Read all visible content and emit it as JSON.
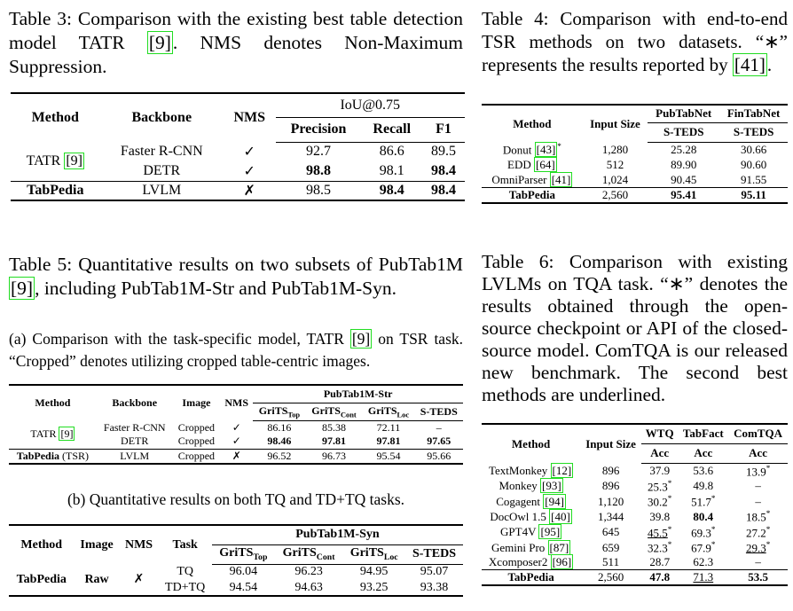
{
  "table3": {
    "caption": [
      "Table 3: Comparison with the existing best table detection model TATR ",
      {
        "text": "[9]",
        "cite": true
      },
      ". NMS denotes Non-Maximum Suppression."
    ],
    "header": [
      "Method",
      "Backbone",
      "NMS",
      "IoU@0.75",
      "Precision",
      "Recall",
      "F1"
    ],
    "body": [
      [
        [
          [
            "TATR ",
            {
              "text": "[9]",
              "cite": true
            }
          ],
          "Faster R-CNN",
          "✓",
          "92.7",
          "86.6",
          "89.5"
        ],
        [
          null,
          "DETR",
          "✓",
          {
            "text": "98.8",
            "bold": true
          },
          "98.1",
          {
            "text": "98.4",
            "bold": true
          }
        ]
      ],
      [
        [
          {
            "text": "TabPedia",
            "bold": true
          },
          "LVLM",
          "✗",
          "98.5",
          {
            "text": "98.4",
            "bold": true
          },
          {
            "text": "98.4",
            "bold": true
          }
        ]
      ]
    ]
  },
  "table4": {
    "caption": [
      "Table 4: Comparison with end-to-end TSR methods on two datasets. “∗” represents the results reported by ",
      {
        "text": "[41]",
        "cite": true
      },
      "."
    ],
    "header": [
      "Method",
      "Input Size",
      "PubTabNet",
      "FinTabNet",
      "S-TEDS",
      "S-TEDS"
    ],
    "body": [
      [
        [
          [
            "Donut ",
            {
              "text": "[43]",
              "cite": true
            },
            {
              "text": "*",
              "sup": true
            }
          ],
          "1,280",
          "25.28",
          "30.66"
        ],
        [
          [
            "EDD ",
            {
              "text": "[64]",
              "cite": true
            }
          ],
          "512",
          "89.90",
          "90.60"
        ],
        [
          [
            "OmniParser ",
            {
              "text": "[41]",
              "cite": true
            }
          ],
          "1,024",
          "90.45",
          "91.55"
        ]
      ],
      [
        [
          {
            "text": "TabPedia",
            "bold": true
          },
          "2,560",
          {
            "text": "95.41",
            "bold": true
          },
          {
            "text": "95.11",
            "bold": true
          }
        ]
      ]
    ]
  },
  "table5": {
    "caption": [
      "Table 5: Quantitative results on two subsets of PubTab1M ",
      {
        "text": "[9]",
        "cite": true
      },
      ", including PubTab1M-Str and PubTab1M-Syn."
    ],
    "a": {
      "caption": [
        "(a) Comparison with the task-specific model, TATR ",
        {
          "text": "[9]",
          "cite": true
        },
        " on TSR task. “Cropped” denotes utilizing cropped table-centric images."
      ],
      "header": [
        "Method",
        "Backbone",
        "Image",
        "NMS",
        "PubTab1M-Str",
        [
          "GriTS",
          {
            "text": "Top",
            "sub": true
          }
        ],
        [
          "GriTS",
          {
            "text": "Cont",
            "sub": true
          }
        ],
        [
          "GriTS",
          {
            "text": "Loc",
            "sub": true
          }
        ],
        "S-TEDS"
      ],
      "body": [
        [
          [
            [
              "TATR ",
              {
                "text": "[9]",
                "cite": true
              }
            ],
            "Faster R-CNN",
            "Cropped",
            "✓",
            "86.16",
            "85.38",
            "72.11",
            "–"
          ],
          [
            null,
            "DETR",
            "Cropped",
            "✓",
            {
              "text": "98.46",
              "bold": true
            },
            {
              "text": "97.81",
              "bold": true
            },
            {
              "text": "97.81",
              "bold": true
            },
            {
              "text": "97.65",
              "bold": true
            }
          ]
        ],
        [
          [
            [
              {
                "text": "TabPedia",
                "bold": true
              },
              " (TSR)"
            ],
            "LVLM",
            "Cropped",
            "✗",
            "96.52",
            "96.73",
            "95.54",
            "95.66"
          ]
        ]
      ]
    },
    "b": {
      "caption": "(b) Quantitative results on both TQ and TD+TQ tasks.",
      "header": [
        "Method",
        "Image",
        "NMS",
        "Task",
        "PubTab1M-Syn",
        [
          "GriTS",
          {
            "text": "Top",
            "sub": true
          }
        ],
        [
          "GriTS",
          {
            "text": "Cont",
            "sub": true
          }
        ],
        [
          "GriTS",
          {
            "text": "Loc",
            "sub": true
          }
        ],
        "S-TEDS"
      ],
      "body": [
        [
          [
            {
              "text": "TabPedia",
              "bold": true
            },
            {
              "text": "Raw",
              "bold": true
            },
            "✗",
            "TQ",
            "96.04",
            "96.23",
            "94.95",
            "95.07"
          ],
          [
            null,
            null,
            null,
            "TD+TQ",
            "94.54",
            "94.63",
            "93.25",
            "93.38"
          ]
        ]
      ]
    }
  },
  "table6": {
    "caption": "Table 6: Comparison with existing LVLMs on TQA task. “∗” denotes the results obtained through the open-source checkpoint or API of the closed-source model. ComTQA is our released new benchmark. The second best methods are underlined.",
    "header": [
      "Method",
      "Input Size",
      "WTQ",
      "TabFact",
      "ComTQA",
      "Acc",
      "Acc",
      "Acc"
    ],
    "body": [
      [
        [
          [
            "TextMonkey ",
            {
              "text": "[12]",
              "cite": true
            }
          ],
          "896",
          "37.9",
          "53.6",
          [
            "13.9",
            {
              "text": "*",
              "sup": true
            }
          ]
        ],
        [
          [
            "Monkey ",
            {
              "text": "[93]",
              "cite": true
            }
          ],
          "896",
          [
            "25.3",
            {
              "text": "*",
              "sup": true
            }
          ],
          "49.8",
          "–"
        ],
        [
          [
            "Cogagent ",
            {
              "text": "[94]",
              "cite": true
            }
          ],
          "1,120",
          [
            "30.2",
            {
              "text": "*",
              "sup": true
            }
          ],
          [
            "51.7",
            {
              "text": "*",
              "sup": true
            }
          ],
          "–"
        ],
        [
          [
            "DocOwl 1.5 ",
            {
              "text": "[40]",
              "cite": true
            }
          ],
          "1,344",
          "39.8",
          {
            "text": "80.4",
            "bold": true
          },
          [
            "18.5",
            {
              "text": "*",
              "sup": true
            }
          ]
        ],
        [
          [
            "GPT4V ",
            {
              "text": "[95]",
              "cite": true
            }
          ],
          "645",
          [
            {
              "text": "45.5",
              "underline": true
            },
            {
              "text": "*",
              "sup": true
            }
          ],
          [
            "69.3",
            {
              "text": "*",
              "sup": true
            }
          ],
          [
            "27.2",
            {
              "text": "*",
              "sup": true
            }
          ]
        ],
        [
          [
            "Gemini Pro ",
            {
              "text": "[87]",
              "cite": true
            }
          ],
          "659",
          [
            "32.3",
            {
              "text": "*",
              "sup": true
            }
          ],
          [
            "67.9",
            {
              "text": "*",
              "sup": true
            }
          ],
          [
            {
              "text": "29.3",
              "underline": true
            },
            {
              "text": "*",
              "sup": true
            }
          ]
        ],
        [
          [
            "Xcomposer2 ",
            {
              "text": "[96]",
              "cite": true
            }
          ],
          "511",
          "28.7",
          "62.3",
          "–"
        ]
      ],
      [
        [
          {
            "text": "TabPedia",
            "bold": true
          },
          "2,560",
          {
            "text": "47.8",
            "bold": true
          },
          {
            "text": "71.3",
            "underline": true
          },
          {
            "text": "53.5",
            "bold": true
          }
        ]
      ]
    ]
  }
}
